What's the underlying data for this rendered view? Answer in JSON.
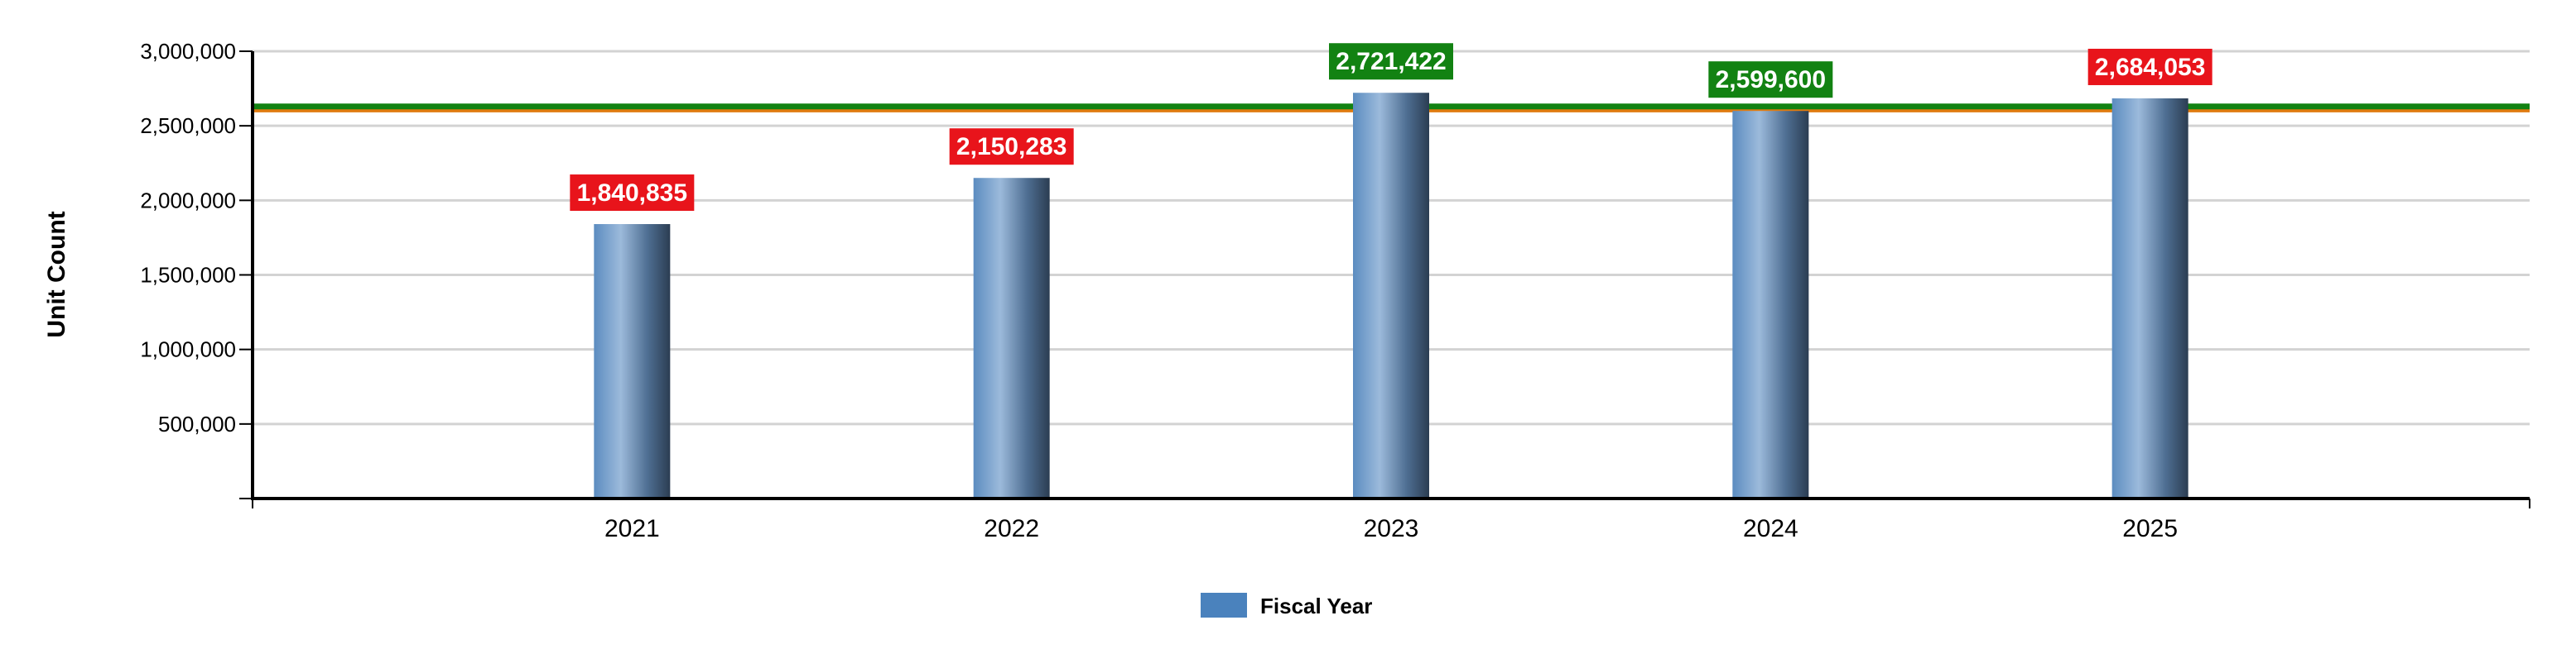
{
  "chart_data": {
    "type": "bar",
    "categories": [
      "2021",
      "2022",
      "2023",
      "2024",
      "2025"
    ],
    "series": [
      {
        "name": "Fiscal Year",
        "values": [
          1840835,
          2150283,
          2721422,
          2599600,
          2684053
        ]
      }
    ],
    "data_labels": [
      "1,840,835",
      "2,150,283",
      "2,721,422",
      "2,599,600",
      "2,684,053"
    ],
    "data_label_colors": [
      "#e8141b",
      "#e8141b",
      "#128212",
      "#128212",
      "#e8141b"
    ],
    "ylabel": "Unit Count",
    "xlabel": "",
    "ylim": [
      0,
      3000000
    ],
    "yticks": [
      500000,
      1000000,
      1500000,
      2000000,
      2500000,
      3000000
    ],
    "ytick_labels": [
      "500,000",
      "1,000,000",
      "1,500,000",
      "2,000,000",
      "2,500,000",
      "3,000,000"
    ],
    "reference_lines": [
      {
        "value": 2610000,
        "color": "#e07b10"
      },
      {
        "value": 2630000,
        "color": "#128212"
      }
    ],
    "grid": true,
    "legend": {
      "position": "bottom-center",
      "label": "Fiscal Year",
      "color": "#4a82bd"
    },
    "colors": {
      "bar_light": "#9cbadb",
      "bar_mid": "#5b8cc0",
      "bar_dark": "#2b3d52"
    }
  }
}
